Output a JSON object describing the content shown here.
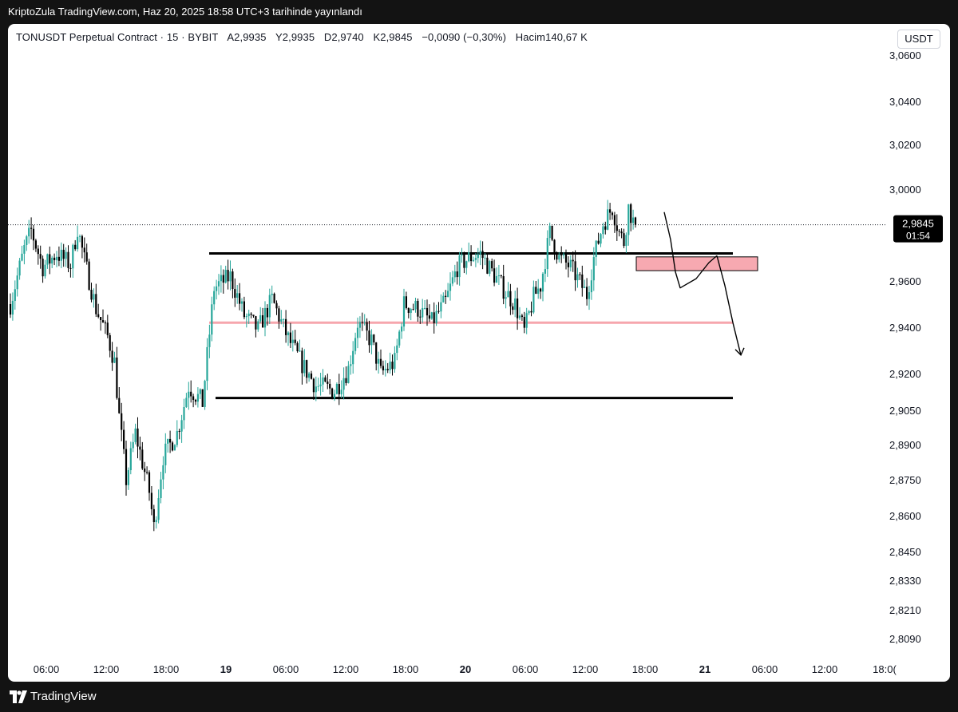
{
  "header": {
    "publish_note": "KriptoZula TradingView.com, Haz 20, 2025 18:58 UTC+3 tarihinde yayınlandı"
  },
  "legend": {
    "symbol": "TONUSDT Perpetual Contract · 15 · BYBIT",
    "open": "A2,9935",
    "high": "Y2,9935",
    "low": "D2,9740",
    "close": "K2,9845",
    "change": "−0,0090 (−0,30%)",
    "volume": "Hacim140,67 K"
  },
  "currency_button": "USDT",
  "price_tag": {
    "price": "2,9845",
    "countdown": "01:54"
  },
  "footer": {
    "brand": "TradingView"
  },
  "colors": {
    "up": "#26a69a",
    "down": "#000000",
    "pink_line": "#f6a6ad",
    "zone_fill": "#f7a9b1",
    "background": "#ffffff"
  },
  "chart_data": {
    "type": "candlestick",
    "y_axis_ticks": [
      "3,0600",
      "3,0400",
      "3,0200",
      "3,0000",
      "2,9600",
      "2,9400",
      "2,9200",
      "2,9050",
      "2,8900",
      "2,8750",
      "2,8600",
      "2,8450",
      "2,8330",
      "2,8210",
      "2,8090"
    ],
    "x_axis_ticks": [
      "06:00",
      "12:00",
      "18:00",
      "19",
      "06:00",
      "12:00",
      "18:00",
      "20",
      "06:00",
      "12:00",
      "18:00",
      "21",
      "06:00",
      "12:00",
      "18:0("
    ],
    "x_axis_bold": [
      false,
      false,
      false,
      true,
      false,
      false,
      false,
      true,
      false,
      false,
      false,
      true,
      false,
      false,
      false
    ],
    "last_price": 2.9845,
    "levels": [
      {
        "kind": "resistance",
        "price": 2.972
      },
      {
        "kind": "support",
        "price": 2.91
      },
      {
        "kind": "mid",
        "price": 2.942
      }
    ],
    "zone": {
      "top": 2.9705,
      "bottom": 2.9645
    },
    "path": [
      [
        0,
        2.95
      ],
      [
        6,
        2.974
      ],
      [
        9,
        2.982
      ],
      [
        14,
        2.966
      ],
      [
        20,
        2.972
      ],
      [
        26,
        2.967
      ],
      [
        29,
        2.983
      ],
      [
        32,
        2.969
      ],
      [
        37,
        2.948
      ],
      [
        42,
        2.936
      ],
      [
        45,
        2.925
      ],
      [
        47,
        2.902
      ],
      [
        50,
        2.875
      ],
      [
        54,
        2.895
      ],
      [
        60,
        2.87
      ],
      [
        62,
        2.855
      ],
      [
        66,
        2.885
      ],
      [
        72,
        2.895
      ],
      [
        77,
        2.915
      ],
      [
        83,
        2.908
      ],
      [
        88,
        2.957
      ],
      [
        95,
        2.962
      ],
      [
        101,
        2.945
      ],
      [
        107,
        2.939
      ],
      [
        113,
        2.952
      ],
      [
        120,
        2.935
      ],
      [
        126,
        2.924
      ],
      [
        132,
        2.915
      ],
      [
        140,
        2.913
      ],
      [
        146,
        2.922
      ],
      [
        150,
        2.942
      ],
      [
        156,
        2.934
      ],
      [
        160,
        2.92
      ],
      [
        166,
        2.925
      ],
      [
        170,
        2.95
      ],
      [
        176,
        2.948
      ],
      [
        182,
        2.942
      ],
      [
        188,
        2.951
      ],
      [
        193,
        2.966
      ],
      [
        198,
        2.97
      ],
      [
        203,
        2.972
      ],
      [
        208,
        2.964
      ],
      [
        214,
        2.955
      ],
      [
        218,
        2.95
      ],
      [
        222,
        2.938
      ],
      [
        226,
        2.953
      ],
      [
        229,
        2.958
      ],
      [
        233,
        2.981
      ],
      [
        237,
        2.97
      ],
      [
        242,
        2.966
      ],
      [
        245,
        2.961
      ],
      [
        249,
        2.954
      ],
      [
        252,
        2.97
      ],
      [
        256,
        2.985
      ],
      [
        260,
        2.992
      ],
      [
        263,
        2.981
      ],
      [
        265,
        2.977
      ],
      [
        267,
        2.992
      ],
      [
        269,
        2.986
      ],
      [
        270,
        2.9845
      ]
    ],
    "scenario_arrow": [
      [
        2.99,
        2.978,
        2.964,
        2.957,
        2.961,
        2.968,
        2.971
      ],
      [
        2.971,
        2.958,
        2.942,
        2.928
      ]
    ]
  }
}
